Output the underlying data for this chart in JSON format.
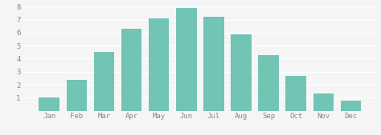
{
  "categories": [
    "Jan",
    "Feb",
    "Mar",
    "Apr",
    "May",
    "Jun",
    "Jul",
    "Aug",
    "Sep",
    "Oct",
    "Nov",
    "Dec"
  ],
  "values": [
    1.0,
    2.4,
    4.5,
    6.3,
    7.1,
    7.9,
    7.2,
    5.9,
    4.3,
    2.7,
    1.3,
    0.8
  ],
  "bar_color": "#72c4b5",
  "ylim": [
    0,
    8.2
  ],
  "yticks": [
    1,
    2,
    3,
    4,
    5,
    6,
    7,
    8
  ],
  "background_color": "#f5f5f5",
  "grid_color": "#ffffff",
  "tick_label_color": "#888888",
  "bar_width": 0.75
}
